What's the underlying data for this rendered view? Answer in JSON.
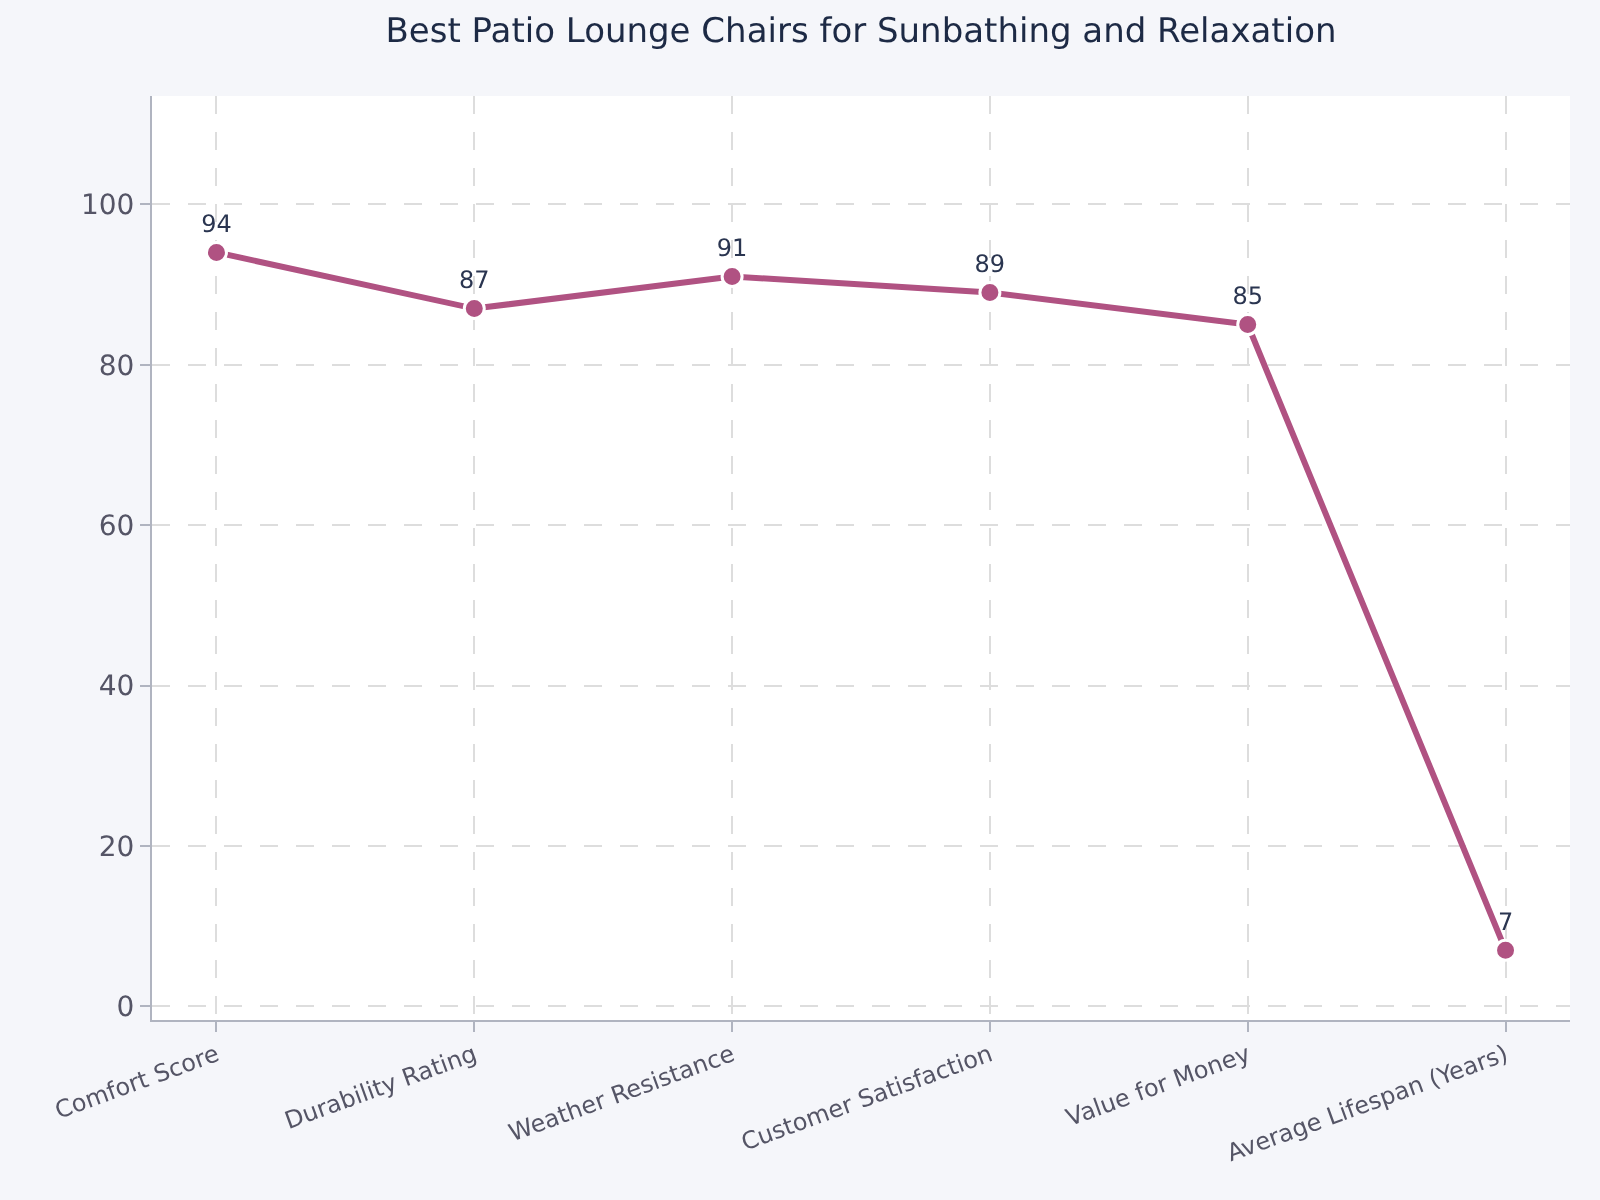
{
  "chart_data": {
    "type": "line",
    "title": "Best Patio Lounge Chairs for Sunbathing and Relaxation",
    "categories": [
      "Comfort Score",
      "Durability Rating",
      "Weather Resistance",
      "Customer Satisfaction",
      "Value for Money",
      "Average Lifespan (Years)"
    ],
    "series": [
      {
        "color": "#b05282",
        "values": [
          94,
          87,
          91,
          89,
          85,
          7
        ]
      }
    ],
    "ylim": [
      -1.7,
      113.5
    ],
    "yticks": [
      0,
      20,
      40,
      60,
      80,
      100
    ],
    "grid": true,
    "data_labels": true,
    "marker": "circle",
    "line_style": "solid"
  }
}
